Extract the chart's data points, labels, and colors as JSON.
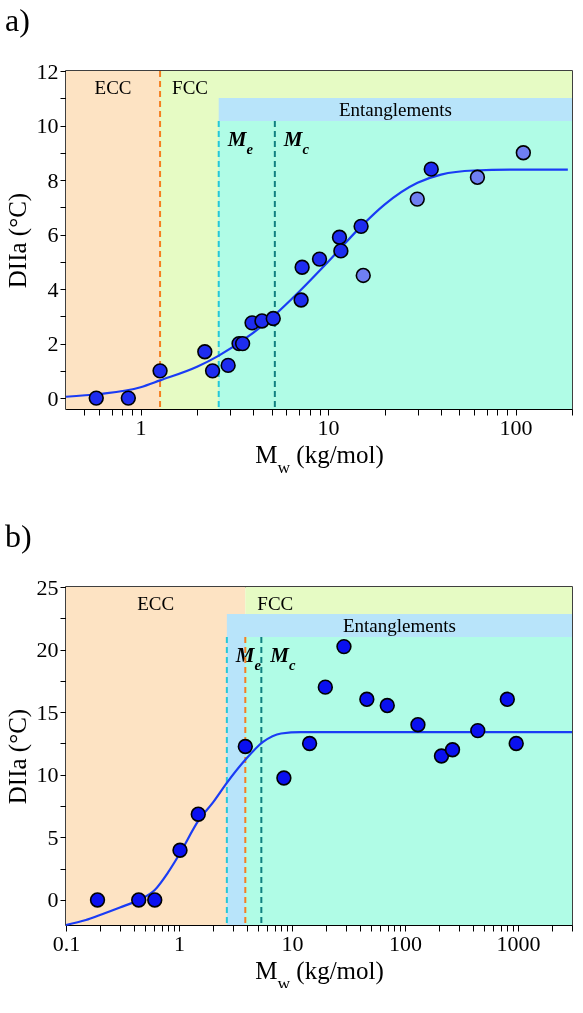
{
  "chart_data": [
    {
      "type": "scatter",
      "title": "a)",
      "xlabel": "M$_{w}$ (kg/mol)",
      "ylabel": "DIIa (°C)",
      "log": "x",
      "grid": false,
      "xlim": [
        0.4,
        200
      ],
      "ylim": [
        -0.4,
        12
      ],
      "xticks": [
        {
          "value": 0.5,
          "label": null
        },
        {
          "value": 0.6,
          "label": null
        },
        {
          "value": 0.7,
          "label": null
        },
        {
          "value": 0.8,
          "label": null
        },
        {
          "value": 0.9,
          "label": null
        },
        1,
        {
          "value": 2,
          "label": null
        },
        {
          "value": 3,
          "label": null
        },
        {
          "value": 4,
          "label": null
        },
        {
          "value": 5,
          "label": null
        },
        {
          "value": 6,
          "label": null
        },
        {
          "value": 7,
          "label": null
        },
        {
          "value": 8,
          "label": null
        },
        {
          "value": 9,
          "label": null
        },
        10,
        {
          "value": 20,
          "label": null
        },
        {
          "value": 30,
          "label": null
        },
        {
          "value": 40,
          "label": null
        },
        {
          "value": 50,
          "label": null
        },
        {
          "value": 60,
          "label": null
        },
        {
          "value": 70,
          "label": null
        },
        {
          "value": 80,
          "label": null
        },
        {
          "value": 90,
          "label": null
        },
        100,
        {
          "value": 200,
          "label": null
        }
      ],
      "yticks": [
        0,
        {
          "value": 1,
          "label": null
        },
        2,
        {
          "value": 3,
          "label": null
        },
        4,
        {
          "value": 5,
          "label": null
        },
        6,
        {
          "value": 7,
          "label": null
        },
        8,
        {
          "value": 9,
          "label": null
        },
        10,
        {
          "value": 11,
          "label": null
        },
        12
      ],
      "bands": [
        {
          "axis": "x",
          "from": 0.4,
          "to": 1.27,
          "label": "ECC",
          "color": "#fde3c3"
        },
        {
          "axis": "x",
          "from": 1.27,
          "to": 200,
          "label": "FCC",
          "color": "#e6fbc4"
        },
        {
          "axis": "x",
          "from": 2.61,
          "to": 200,
          "label": "Entanglements",
          "color": "#b8e4fa"
        },
        {
          "axis": "x",
          "from": 2.61,
          "to": 200,
          "label": null,
          "color": "#b0fce6"
        }
      ],
      "ref_lines": [
        {
          "axis": "x",
          "value": 1.27,
          "label": null,
          "color": "#f57f20",
          "line_style": "dashed"
        },
        {
          "axis": "x",
          "value": 2.61,
          "label": "M$_{e}$",
          "color": "#25c8d8",
          "line_style": "dashed"
        },
        {
          "axis": "x",
          "value": 5.2,
          "label": "M$_{c}$",
          "color": "#108080",
          "line_style": "dashed"
        }
      ],
      "series": [
        {
          "marker": "circle",
          "color": "#1e2cf0",
          "x": [
            0.58,
            0.86,
            1.27,
            2.2,
            2.42,
            2.93,
            3.35,
            3.5,
            3.93,
            4.44,
            5.1,
            7.18,
            7.27,
            9.0,
            11.5,
            11.7,
            15.0,
            35.5
          ],
          "values": [
            0,
            0,
            1.0,
            1.7,
            1.0,
            1.2,
            2.0,
            2.0,
            2.76,
            2.83,
            2.92,
            3.6,
            4.8,
            5.1,
            5.9,
            5.4,
            6.3,
            8.4
          ]
        },
        {
          "marker": "circle",
          "color": "#6f7ff2",
          "x": [
            15.4,
            29.9,
            62.6,
            110
          ],
          "values": [
            4.5,
            7.3,
            8.1,
            9.0
          ]
        },
        {
          "type": "line",
          "color": "#1a3cf5",
          "x": [
            0.4,
            0.6,
            1,
            1.27,
            2,
            2.6,
            4,
            5.1,
            7,
            10,
            15,
            20,
            30,
            40,
            60,
            100,
            190
          ],
          "values": [
            0.05,
            0.15,
            0.4,
            0.65,
            1.15,
            1.55,
            2.4,
            3.0,
            3.9,
            5.0,
            6.3,
            7.1,
            7.9,
            8.2,
            8.35,
            8.38,
            8.38
          ]
        }
      ]
    },
    {
      "type": "scatter",
      "title": "b)",
      "xlabel": "M$_{w}$ (kg/mol)",
      "ylabel": "DIIa (°C)",
      "log": "x",
      "grid": false,
      "xlim": [
        0.1,
        3000
      ],
      "ylim": [
        -2,
        25
      ],
      "xticks": [
        0.1,
        {
          "value": 0.2,
          "label": null
        },
        {
          "value": 0.3,
          "label": null
        },
        {
          "value": 0.4,
          "label": null
        },
        {
          "value": 0.5,
          "label": null
        },
        {
          "value": 0.6,
          "label": null
        },
        {
          "value": 0.7,
          "label": null
        },
        {
          "value": 0.8,
          "label": null
        },
        {
          "value": 0.9,
          "label": null
        },
        1,
        {
          "value": 2,
          "label": null
        },
        {
          "value": 3,
          "label": null
        },
        {
          "value": 4,
          "label": null
        },
        {
          "value": 5,
          "label": null
        },
        {
          "value": 6,
          "label": null
        },
        {
          "value": 7,
          "label": null
        },
        {
          "value": 8,
          "label": null
        },
        {
          "value": 9,
          "label": null
        },
        10,
        {
          "value": 20,
          "label": null
        },
        {
          "value": 30,
          "label": null
        },
        {
          "value": 40,
          "label": null
        },
        {
          "value": 50,
          "label": null
        },
        {
          "value": 60,
          "label": null
        },
        {
          "value": 70,
          "label": null
        },
        {
          "value": 80,
          "label": null
        },
        {
          "value": 90,
          "label": null
        },
        100,
        {
          "value": 200,
          "label": null
        },
        {
          "value": 300,
          "label": null
        },
        {
          "value": 400,
          "label": null
        },
        {
          "value": 500,
          "label": null
        },
        {
          "value": 600,
          "label": null
        },
        {
          "value": 700,
          "label": null
        },
        {
          "value": 800,
          "label": null
        },
        {
          "value": 900,
          "label": null
        },
        1000,
        {
          "value": 2000,
          "label": null
        },
        {
          "value": 3000,
          "label": null
        }
      ],
      "yticks": [
        0,
        {
          "value": 2.5,
          "label": null
        },
        5,
        {
          "value": 7.5,
          "label": null
        },
        10,
        {
          "value": 12.5,
          "label": null
        },
        15,
        {
          "value": 17.5,
          "label": null
        },
        20,
        {
          "value": 22.5,
          "label": null
        },
        25
      ],
      "bands": [
        {
          "axis": "x",
          "from": 0.1,
          "to": 3.86,
          "label": "ECC",
          "color": "#fde3c3"
        },
        {
          "axis": "x",
          "from": 3.86,
          "to": 3000,
          "label": "FCC",
          "color": "#e6fbc4"
        },
        {
          "axis": "x",
          "from": 2.65,
          "to": 3000,
          "label": "Entanglements",
          "color": "#b8e4fa"
        },
        {
          "axis": "x",
          "from": 3.86,
          "to": 3000,
          "label": null,
          "color": "#b0fce6"
        }
      ],
      "ref_lines": [
        {
          "axis": "x",
          "value": 2.65,
          "label": "M$_{e}$",
          "color": "#25c8d8",
          "line_style": "dashed"
        },
        {
          "axis": "x",
          "value": 3.86,
          "label": null,
          "color": "#f57f20",
          "line_style": "dashed"
        },
        {
          "axis": "x",
          "value": 5.35,
          "label": "M$_{c}$",
          "color": "#108080",
          "line_style": "dashed"
        }
      ],
      "series": [
        {
          "marker": "circle",
          "color": "#0a10f0",
          "x": [
            0.19,
            0.44,
            0.61,
            1.02,
            1.48,
            3.86,
            8.47,
            14.3,
            19.7,
            28.8,
            45.9,
            69.6,
            130,
            210,
            263,
            440,
            803,
            963
          ],
          "values": [
            0,
            0,
            0,
            3.97,
            6.85,
            12.26,
            9.74,
            12.5,
            17.0,
            20.24,
            16.03,
            15.53,
            14.0,
            11.5,
            12.0,
            13.53,
            16.03,
            12.5
          ]
        },
        {
          "type": "line",
          "color": "#1a3cf5",
          "x": [
            0.1,
            0.15,
            0.2,
            0.3,
            0.44,
            0.61,
            0.8,
            1.0,
            1.5,
            2.0,
            2.67,
            3.86,
            5.5,
            8,
            12,
            20,
            100,
            3000
          ],
          "values": [
            -2,
            -1.6,
            -1.2,
            -0.6,
            0,
            0.8,
            2.2,
            3.6,
            6.4,
            7.8,
            9.4,
            11.2,
            12.6,
            13.3,
            13.4,
            13.4,
            13.4,
            13.4
          ]
        }
      ]
    }
  ]
}
